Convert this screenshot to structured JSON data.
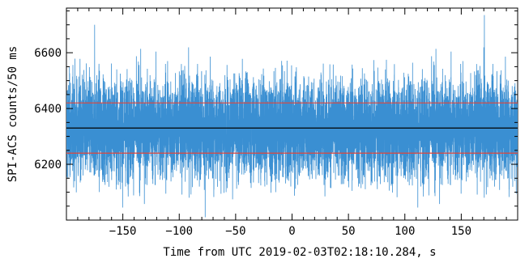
{
  "chart_data": {
    "type": "line",
    "xlabel": "Time from UTC 2019-02-03T02:18:10.284, s",
    "ylabel": "SPI-ACS counts/50 ms",
    "xlim": [
      -200,
      200
    ],
    "ylim": [
      6000,
      6760
    ],
    "x_ticks": [
      -150,
      -100,
      -50,
      0,
      50,
      100,
      150
    ],
    "y_ticks": [
      6200,
      6400,
      6600
    ],
    "bin_seconds": 0.05,
    "series": [
      {
        "role": "light-curve",
        "color": "#3a8fd2",
        "x_start": -200,
        "x_end": 200,
        "step": 0.05,
        "mean": 6330,
        "sigma": 90,
        "min": 6010,
        "max": 6735
      }
    ],
    "reference_lines": [
      {
        "role": "background",
        "y": 6330,
        "color": "#000000"
      },
      {
        "role": "upper-threshold",
        "y": 6420,
        "color": "#e0453a"
      },
      {
        "role": "lower-threshold",
        "y": 6240,
        "color": "#e0453a"
      }
    ],
    "spikes": [
      {
        "x": 170.5,
        "y": 6735
      },
      {
        "x": -77,
        "y": 6010
      },
      {
        "x": -175,
        "y": 6700
      }
    ],
    "grid": false
  }
}
